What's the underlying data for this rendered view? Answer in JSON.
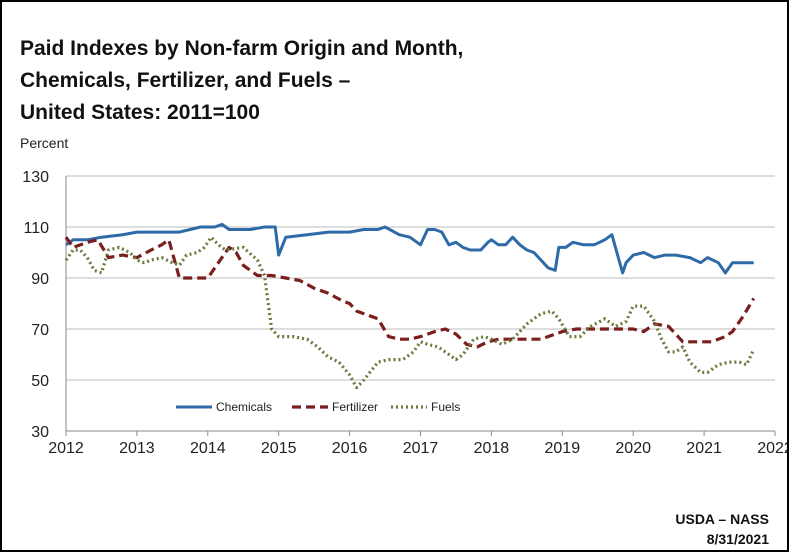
{
  "title_lines": [
    "Paid Indexes by Non-farm Origin and Month,",
    "Chemicals, Fertilizer, and Fuels –",
    "United States: 2011=100"
  ],
  "source": {
    "agency": "USDA – NASS",
    "date": "8/31/2021"
  },
  "chart_data": {
    "type": "line",
    "title": "Paid Indexes by Non-farm Origin and Month, Chemicals, Fertilizer, and Fuels – United States: 2011=100",
    "ylabel": "Percent",
    "xlabel": "",
    "xlim": [
      2012,
      2022
    ],
    "ylim": [
      30,
      130
    ],
    "xticks": [
      "2012",
      "2013",
      "2014",
      "2015",
      "2016",
      "2017",
      "2018",
      "2019",
      "2020",
      "2021",
      "2022"
    ],
    "yticks": [
      "30",
      "50",
      "70",
      "90",
      "110",
      "130"
    ],
    "grid": "horizontal",
    "legend": "inside-bottom-left",
    "series": [
      {
        "name": "Chemicals",
        "color": "#2e6aa8",
        "style": "solid",
        "points": [
          [
            2012.0,
            103
          ],
          [
            2012.1,
            105
          ],
          [
            2012.3,
            105
          ],
          [
            2012.5,
            106
          ],
          [
            2012.8,
            107
          ],
          [
            2013.0,
            108
          ],
          [
            2013.3,
            108
          ],
          [
            2013.6,
            108
          ],
          [
            2013.9,
            110
          ],
          [
            2014.1,
            110
          ],
          [
            2014.2,
            111
          ],
          [
            2014.3,
            109
          ],
          [
            2014.6,
            109
          ],
          [
            2014.8,
            110
          ],
          [
            2014.95,
            110
          ],
          [
            2015.0,
            99
          ],
          [
            2015.1,
            106
          ],
          [
            2015.4,
            107
          ],
          [
            2015.7,
            108
          ],
          [
            2016.0,
            108
          ],
          [
            2016.2,
            109
          ],
          [
            2016.4,
            109
          ],
          [
            2016.5,
            110
          ],
          [
            2016.7,
            107
          ],
          [
            2016.85,
            106
          ],
          [
            2017.0,
            103
          ],
          [
            2017.1,
            109
          ],
          [
            2017.2,
            109
          ],
          [
            2017.3,
            108
          ],
          [
            2017.4,
            103
          ],
          [
            2017.5,
            104
          ],
          [
            2017.6,
            102
          ],
          [
            2017.7,
            101
          ],
          [
            2017.85,
            101
          ],
          [
            2017.95,
            104
          ],
          [
            2018.0,
            105
          ],
          [
            2018.1,
            103
          ],
          [
            2018.2,
            103
          ],
          [
            2018.3,
            106
          ],
          [
            2018.4,
            103
          ],
          [
            2018.5,
            101
          ],
          [
            2018.6,
            100
          ],
          [
            2018.7,
            97
          ],
          [
            2018.8,
            94
          ],
          [
            2018.9,
            93
          ],
          [
            2018.95,
            102
          ],
          [
            2019.05,
            102
          ],
          [
            2019.15,
            104
          ],
          [
            2019.3,
            103
          ],
          [
            2019.45,
            103
          ],
          [
            2019.6,
            105
          ],
          [
            2019.7,
            107
          ],
          [
            2019.85,
            92
          ],
          [
            2019.9,
            96
          ],
          [
            2020.0,
            99
          ],
          [
            2020.15,
            100
          ],
          [
            2020.3,
            98
          ],
          [
            2020.45,
            99
          ],
          [
            2020.6,
            99
          ],
          [
            2020.8,
            98
          ],
          [
            2020.95,
            96
          ],
          [
            2021.05,
            98
          ],
          [
            2021.2,
            96
          ],
          [
            2021.3,
            92
          ],
          [
            2021.4,
            96
          ],
          [
            2021.55,
            96
          ],
          [
            2021.7,
            96
          ]
        ]
      },
      {
        "name": "Fertilizer",
        "color": "#7a1e1e",
        "style": "dashed",
        "points": [
          [
            2012.0,
            106
          ],
          [
            2012.1,
            102
          ],
          [
            2012.3,
            104
          ],
          [
            2012.45,
            105
          ],
          [
            2012.6,
            98
          ],
          [
            2012.8,
            99
          ],
          [
            2013.0,
            98
          ],
          [
            2013.2,
            101
          ],
          [
            2013.35,
            103
          ],
          [
            2013.45,
            105
          ],
          [
            2013.6,
            90
          ],
          [
            2013.8,
            90
          ],
          [
            2014.0,
            90
          ],
          [
            2014.15,
            96
          ],
          [
            2014.3,
            102
          ],
          [
            2014.4,
            100
          ],
          [
            2014.5,
            95
          ],
          [
            2014.7,
            91
          ],
          [
            2014.9,
            91
          ],
          [
            2015.1,
            90
          ],
          [
            2015.3,
            89
          ],
          [
            2015.5,
            86
          ],
          [
            2015.7,
            84
          ],
          [
            2015.9,
            81
          ],
          [
            2016.0,
            80
          ],
          [
            2016.1,
            77
          ],
          [
            2016.3,
            75
          ],
          [
            2016.4,
            74
          ],
          [
            2016.55,
            67
          ],
          [
            2016.7,
            66
          ],
          [
            2016.85,
            66
          ],
          [
            2017.0,
            67
          ],
          [
            2017.2,
            69
          ],
          [
            2017.35,
            70
          ],
          [
            2017.5,
            68
          ],
          [
            2017.65,
            64
          ],
          [
            2017.8,
            63
          ],
          [
            2017.95,
            65
          ],
          [
            2018.1,
            66
          ],
          [
            2018.3,
            66
          ],
          [
            2018.5,
            66
          ],
          [
            2018.7,
            66
          ],
          [
            2018.9,
            68
          ],
          [
            2019.0,
            69
          ],
          [
            2019.2,
            70
          ],
          [
            2019.4,
            70
          ],
          [
            2019.6,
            70
          ],
          [
            2019.8,
            70
          ],
          [
            2020.0,
            70
          ],
          [
            2020.15,
            69
          ],
          [
            2020.3,
            72
          ],
          [
            2020.5,
            71
          ],
          [
            2020.7,
            65
          ],
          [
            2020.9,
            65
          ],
          [
            2021.1,
            65
          ],
          [
            2021.3,
            67
          ],
          [
            2021.4,
            69
          ],
          [
            2021.55,
            75
          ],
          [
            2021.7,
            82
          ]
        ]
      },
      {
        "name": "Fuels",
        "color": "#6a7a3a",
        "style": "dotted",
        "points": [
          [
            2012.0,
            97
          ],
          [
            2012.1,
            101
          ],
          [
            2012.2,
            101
          ],
          [
            2012.3,
            98
          ],
          [
            2012.4,
            93
          ],
          [
            2012.5,
            92
          ],
          [
            2012.6,
            101
          ],
          [
            2012.75,
            102
          ],
          [
            2012.9,
            100
          ],
          [
            2013.0,
            97
          ],
          [
            2013.1,
            96
          ],
          [
            2013.2,
            97
          ],
          [
            2013.35,
            98
          ],
          [
            2013.5,
            96
          ],
          [
            2013.6,
            95
          ],
          [
            2013.7,
            99
          ],
          [
            2013.85,
            100
          ],
          [
            2013.95,
            102
          ],
          [
            2014.05,
            106
          ],
          [
            2014.15,
            103
          ],
          [
            2014.25,
            101
          ],
          [
            2014.5,
            102
          ],
          [
            2014.7,
            97
          ],
          [
            2014.8,
            91
          ],
          [
            2014.9,
            70
          ],
          [
            2015.0,
            67
          ],
          [
            2015.2,
            67
          ],
          [
            2015.4,
            66
          ],
          [
            2015.55,
            63
          ],
          [
            2015.7,
            59
          ],
          [
            2015.85,
            57
          ],
          [
            2016.0,
            52
          ],
          [
            2016.1,
            47
          ],
          [
            2016.2,
            50
          ],
          [
            2016.4,
            57
          ],
          [
            2016.55,
            58
          ],
          [
            2016.75,
            58
          ],
          [
            2016.9,
            61
          ],
          [
            2017.0,
            65
          ],
          [
            2017.1,
            64
          ],
          [
            2017.25,
            63
          ],
          [
            2017.4,
            60
          ],
          [
            2017.5,
            58
          ],
          [
            2017.6,
            60
          ],
          [
            2017.75,
            66
          ],
          [
            2017.9,
            67
          ],
          [
            2018.0,
            66
          ],
          [
            2018.15,
            64
          ],
          [
            2018.3,
            66
          ],
          [
            2018.5,
            72
          ],
          [
            2018.7,
            76
          ],
          [
            2018.85,
            77
          ],
          [
            2018.95,
            74
          ],
          [
            2019.1,
            67
          ],
          [
            2019.25,
            67
          ],
          [
            2019.4,
            71
          ],
          [
            2019.6,
            74
          ],
          [
            2019.75,
            71
          ],
          [
            2019.9,
            73
          ],
          [
            2020.0,
            79
          ],
          [
            2020.15,
            79
          ],
          [
            2020.3,
            73
          ],
          [
            2020.4,
            66
          ],
          [
            2020.5,
            61
          ],
          [
            2020.6,
            61
          ],
          [
            2020.7,
            63
          ],
          [
            2020.8,
            57
          ],
          [
            2020.95,
            53
          ],
          [
            2021.05,
            53
          ],
          [
            2021.2,
            56
          ],
          [
            2021.35,
            57
          ],
          [
            2021.5,
            57
          ],
          [
            2021.6,
            56
          ],
          [
            2021.7,
            62
          ]
        ]
      }
    ]
  }
}
